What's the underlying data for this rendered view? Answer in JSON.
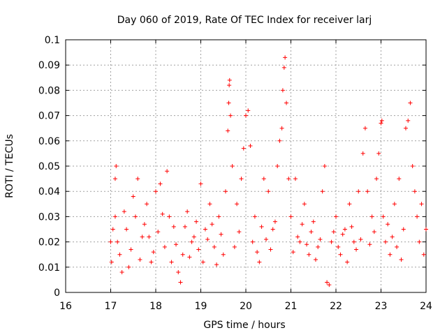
{
  "chart_data": {
    "type": "scatter",
    "title": "Day 060 of 2019, Rate Of TEC Index for receiver larj",
    "xlabel": "GPS time / hours",
    "ylabel": "ROTI / TECUs",
    "xlim": [
      16,
      24
    ],
    "ylim": [
      0,
      0.1
    ],
    "xticks": [
      "16",
      "17",
      "18",
      "19",
      "20",
      "21",
      "22",
      "23",
      "24"
    ],
    "yticks": [
      "0",
      "0.01",
      "0.02",
      "0.03",
      "0.04",
      "0.05",
      "0.06",
      "0.07",
      "0.08",
      "0.09",
      "0.1"
    ],
    "grid": true,
    "marker": "+",
    "color": "#ff0000",
    "series": [
      {
        "name": "ROTI",
        "points": [
          [
            17.0,
            0.02
          ],
          [
            17.05,
            0.025
          ],
          [
            17.1,
            0.03
          ],
          [
            17.1,
            0.045
          ],
          [
            17.12,
            0.05
          ],
          [
            17.2,
            0.015
          ],
          [
            17.3,
            0.032
          ],
          [
            17.4,
            0.01
          ],
          [
            17.5,
            0.038
          ],
          [
            17.6,
            0.045
          ],
          [
            17.7,
            0.022
          ],
          [
            17.8,
            0.035
          ],
          [
            17.9,
            0.012
          ],
          [
            18.0,
            0.04
          ],
          [
            18.1,
            0.043
          ],
          [
            18.2,
            0.018
          ],
          [
            18.25,
            0.048
          ],
          [
            18.3,
            0.03
          ],
          [
            18.4,
            0.026
          ],
          [
            18.5,
            0.008
          ],
          [
            18.55,
            0.004
          ],
          [
            18.6,
            0.015
          ],
          [
            18.7,
            0.032
          ],
          [
            18.8,
            0.02
          ],
          [
            18.9,
            0.028
          ],
          [
            19.0,
            0.043
          ],
          [
            19.1,
            0.025
          ],
          [
            19.2,
            0.035
          ],
          [
            19.3,
            0.018
          ],
          [
            19.4,
            0.03
          ],
          [
            19.5,
            0.015
          ],
          [
            19.55,
            0.04
          ],
          [
            19.6,
            0.064
          ],
          [
            19.62,
            0.075
          ],
          [
            19.63,
            0.082
          ],
          [
            19.64,
            0.084
          ],
          [
            19.66,
            0.07
          ],
          [
            19.7,
            0.05
          ],
          [
            19.8,
            0.035
          ],
          [
            19.9,
            0.045
          ],
          [
            19.95,
            0.057
          ],
          [
            20.0,
            0.07
          ],
          [
            20.05,
            0.072
          ],
          [
            20.1,
            0.058
          ],
          [
            20.2,
            0.03
          ],
          [
            20.3,
            0.012
          ],
          [
            20.4,
            0.045
          ],
          [
            20.5,
            0.04
          ],
          [
            20.6,
            0.025
          ],
          [
            20.7,
            0.05
          ],
          [
            20.75,
            0.06
          ],
          [
            20.8,
            0.065
          ],
          [
            20.82,
            0.08
          ],
          [
            20.85,
            0.089
          ],
          [
            20.87,
            0.093
          ],
          [
            20.9,
            0.075
          ],
          [
            20.95,
            0.045
          ],
          [
            21.0,
            0.03
          ],
          [
            21.1,
            0.045
          ],
          [
            21.2,
            0.02
          ],
          [
            21.3,
            0.035
          ],
          [
            21.4,
            0.015
          ],
          [
            21.5,
            0.028
          ],
          [
            21.6,
            0.018
          ],
          [
            21.7,
            0.04
          ],
          [
            21.75,
            0.05
          ],
          [
            21.8,
            0.004
          ],
          [
            21.85,
            0.003
          ],
          [
            21.9,
            0.02
          ],
          [
            22.0,
            0.03
          ],
          [
            22.1,
            0.015
          ],
          [
            22.2,
            0.025
          ],
          [
            22.3,
            0.035
          ],
          [
            22.4,
            0.02
          ],
          [
            22.5,
            0.04
          ],
          [
            22.6,
            0.055
          ],
          [
            22.65,
            0.065
          ],
          [
            22.7,
            0.04
          ],
          [
            22.8,
            0.03
          ],
          [
            22.9,
            0.045
          ],
          [
            22.95,
            0.055
          ],
          [
            23.0,
            0.067
          ],
          [
            23.02,
            0.068
          ],
          [
            23.05,
            0.03
          ],
          [
            23.1,
            0.02
          ],
          [
            23.2,
            0.015
          ],
          [
            23.3,
            0.035
          ],
          [
            23.4,
            0.045
          ],
          [
            23.5,
            0.025
          ],
          [
            23.55,
            0.065
          ],
          [
            23.6,
            0.068
          ],
          [
            23.65,
            0.075
          ],
          [
            23.7,
            0.05
          ],
          [
            23.75,
            0.04
          ],
          [
            23.8,
            0.03
          ],
          [
            23.85,
            0.02
          ],
          [
            23.9,
            0.035
          ],
          [
            23.95,
            0.015
          ],
          [
            24.0,
            0.025
          ],
          [
            17.02,
            0.012
          ],
          [
            17.15,
            0.02
          ],
          [
            17.25,
            0.008
          ],
          [
            17.35,
            0.025
          ],
          [
            17.45,
            0.017
          ],
          [
            17.55,
            0.03
          ],
          [
            17.65,
            0.013
          ],
          [
            17.75,
            0.027
          ],
          [
            17.85,
            0.022
          ],
          [
            17.95,
            0.016
          ],
          [
            18.05,
            0.024
          ],
          [
            18.15,
            0.031
          ],
          [
            18.35,
            0.012
          ],
          [
            18.45,
            0.019
          ],
          [
            18.65,
            0.026
          ],
          [
            18.75,
            0.014
          ],
          [
            18.85,
            0.022
          ],
          [
            18.95,
            0.017
          ],
          [
            19.05,
            0.012
          ],
          [
            19.15,
            0.021
          ],
          [
            19.25,
            0.027
          ],
          [
            19.35,
            0.011
          ],
          [
            19.45,
            0.023
          ],
          [
            19.75,
            0.018
          ],
          [
            19.85,
            0.024
          ],
          [
            20.15,
            0.02
          ],
          [
            20.25,
            0.016
          ],
          [
            20.35,
            0.026
          ],
          [
            20.45,
            0.021
          ],
          [
            20.55,
            0.017
          ],
          [
            20.65,
            0.028
          ],
          [
            21.05,
            0.016
          ],
          [
            21.15,
            0.022
          ],
          [
            21.25,
            0.027
          ],
          [
            21.35,
            0.019
          ],
          [
            21.45,
            0.024
          ],
          [
            21.55,
            0.013
          ],
          [
            21.65,
            0.021
          ],
          [
            21.95,
            0.024
          ],
          [
            22.05,
            0.018
          ],
          [
            22.15,
            0.023
          ],
          [
            22.25,
            0.012
          ],
          [
            22.35,
            0.026
          ],
          [
            22.45,
            0.017
          ],
          [
            22.55,
            0.021
          ],
          [
            22.75,
            0.019
          ],
          [
            22.85,
            0.024
          ],
          [
            23.15,
            0.027
          ],
          [
            23.25,
            0.022
          ],
          [
            23.35,
            0.018
          ],
          [
            23.45,
            0.013
          ]
        ]
      }
    ]
  }
}
